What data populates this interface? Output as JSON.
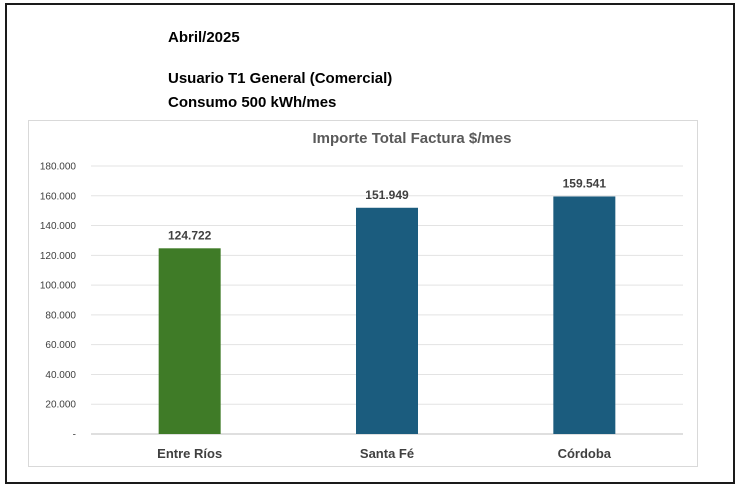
{
  "header": {
    "date": "Abril/2025",
    "user_type": "Usuario T1 General (Comercial)",
    "consumption": "Consumo  500 kWh/mes"
  },
  "chart_data": {
    "type": "bar",
    "title": "Importe Total  Factura $/mes",
    "categories": [
      "Entre Ríos",
      "Santa Fé",
      "Córdoba"
    ],
    "values": [
      124722,
      151949,
      159541
    ],
    "value_labels": [
      "124.722",
      "151.949",
      "159.541"
    ],
    "colors": [
      "#3f7b27",
      "#1b5c7e",
      "#1b5c7e"
    ],
    "ylim": [
      0,
      180000
    ],
    "yticks": [
      0,
      20000,
      40000,
      60000,
      80000,
      100000,
      120000,
      140000,
      160000,
      180000
    ],
    "ytick_labels": [
      "-",
      "20.000",
      "40.000",
      "60.000",
      "80.000",
      "100.000",
      "120.000",
      "140.000",
      "160.000",
      "180.000"
    ],
    "grid": true,
    "xlabel": "",
    "ylabel": ""
  }
}
